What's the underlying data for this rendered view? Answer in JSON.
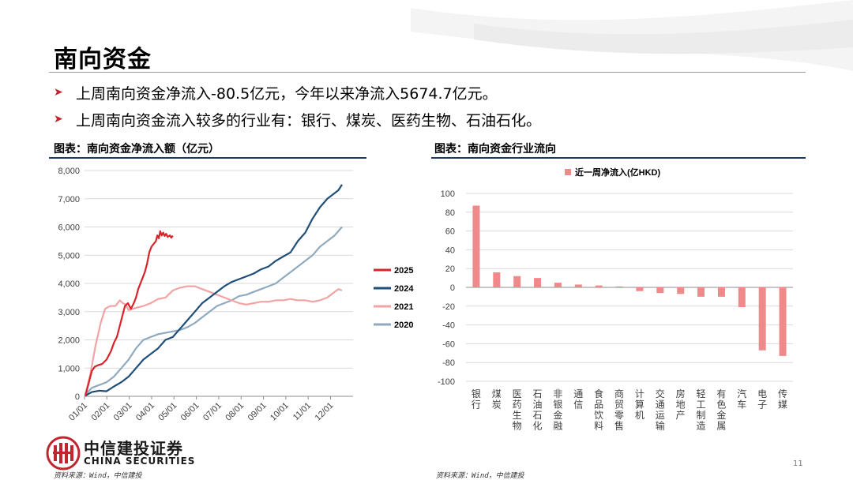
{
  "slide": {
    "title": "南向资金",
    "bullets": [
      "上周南向资金净流入-80.5亿元，今年以来净流入5674.7亿元。",
      "上周南向资金流入较多的行业有：银行、煤炭、医药生物、石油石化。"
    ],
    "page_number": "11"
  },
  "footer": {
    "logo_cn": "中信建投证券",
    "logo_en": "CHINA SECURITIES",
    "source_left": "资料来源：Wind，中信建投",
    "source_right": "资料来源：Wind，中信建投"
  },
  "colors": {
    "brand_red": "#c0262d",
    "s2025": "#d9232b",
    "s2024": "#1f4e79",
    "s2021": "#f2a3a3",
    "s2020": "#8faabf",
    "bar": "#f08a8a"
  },
  "chart_data": [
    {
      "type": "line",
      "title": "图表：南向资金净流入额（亿元）",
      "x_ticks": [
        "01/01",
        "02/01",
        "03/01",
        "04/01",
        "05/01",
        "06/01",
        "07/01",
        "08/01",
        "09/01",
        "10/01",
        "11/01",
        "12/01"
      ],
      "ylim": [
        0,
        8000
      ],
      "y_ticks": [
        "0",
        "1,000",
        "2,000",
        "3,000",
        "4,000",
        "5,000",
        "6,000",
        "7,000",
        "8,000"
      ],
      "grid": true,
      "legend_position": "right",
      "series": [
        {
          "name": "2025",
          "color": "#d9232b",
          "points": [
            [
              1,
              10
            ],
            [
              3,
              200
            ],
            [
              7,
              600
            ],
            [
              10,
              900
            ],
            [
              14,
              1050
            ],
            [
              18,
              1100
            ],
            [
              24,
              1150
            ],
            [
              30,
              1300
            ],
            [
              36,
              1600
            ],
            [
              40,
              1900
            ],
            [
              44,
              2100
            ],
            [
              48,
              2500
            ],
            [
              52,
              2900
            ],
            [
              55,
              3200
            ],
            [
              59,
              3300
            ],
            [
              63,
              3100
            ],
            [
              67,
              3300
            ],
            [
              70,
              3500
            ],
            [
              73,
              3800
            ],
            [
              76,
              4000
            ],
            [
              79,
              4200
            ],
            [
              82,
              4400
            ],
            [
              85,
              4700
            ],
            [
              88,
              5100
            ],
            [
              91,
              5300
            ],
            [
              94,
              5400
            ],
            [
              97,
              5500
            ],
            [
              99,
              5700
            ],
            [
              101,
              5600
            ],
            [
              103,
              5850
            ],
            [
              105,
              5700
            ],
            [
              107,
              5800
            ],
            [
              109,
              5680
            ],
            [
              111,
              5760
            ],
            [
              113,
              5650
            ],
            [
              116,
              5700
            ],
            [
              118,
              5620
            ],
            [
              120,
              5690
            ]
          ]
        },
        {
          "name": "2024",
          "color": "#1f4e79",
          "points": [
            [
              1,
              20
            ],
            [
              10,
              150
            ],
            [
              20,
              200
            ],
            [
              30,
              180
            ],
            [
              40,
              350
            ],
            [
              50,
              500
            ],
            [
              60,
              700
            ],
            [
              70,
              1000
            ],
            [
              80,
              1300
            ],
            [
              90,
              1500
            ],
            [
              100,
              1700
            ],
            [
              110,
              2000
            ],
            [
              120,
              2100
            ],
            [
              130,
              2400
            ],
            [
              140,
              2700
            ],
            [
              150,
              3000
            ],
            [
              160,
              3300
            ],
            [
              170,
              3500
            ],
            [
              180,
              3700
            ],
            [
              190,
              3900
            ],
            [
              200,
              4050
            ],
            [
              210,
              4150
            ],
            [
              220,
              4250
            ],
            [
              230,
              4350
            ],
            [
              240,
              4500
            ],
            [
              250,
              4600
            ],
            [
              260,
              4800
            ],
            [
              270,
              4950
            ],
            [
              280,
              5100
            ],
            [
              290,
              5500
            ],
            [
              300,
              5800
            ],
            [
              310,
              6300
            ],
            [
              320,
              6700
            ],
            [
              330,
              7000
            ],
            [
              340,
              7200
            ],
            [
              345,
              7300
            ],
            [
              350,
              7500
            ]
          ]
        },
        {
          "name": "2021",
          "color": "#f2a3a3",
          "points": [
            [
              1,
              50
            ],
            [
              8,
              800
            ],
            [
              15,
              1800
            ],
            [
              22,
              2600
            ],
            [
              28,
              3100
            ],
            [
              35,
              3200
            ],
            [
              42,
              3200
            ],
            [
              48,
              3400
            ],
            [
              52,
              3300
            ],
            [
              56,
              3250
            ],
            [
              60,
              3050
            ],
            [
              66,
              3100
            ],
            [
              72,
              3150
            ],
            [
              80,
              3200
            ],
            [
              90,
              3300
            ],
            [
              100,
              3450
            ],
            [
              110,
              3500
            ],
            [
              120,
              3750
            ],
            [
              130,
              3850
            ],
            [
              140,
              3900
            ],
            [
              150,
              3900
            ],
            [
              160,
              3800
            ],
            [
              170,
              3700
            ],
            [
              180,
              3600
            ],
            [
              190,
              3500
            ],
            [
              200,
              3400
            ],
            [
              210,
              3300
            ],
            [
              220,
              3250
            ],
            [
              230,
              3300
            ],
            [
              240,
              3350
            ],
            [
              250,
              3350
            ],
            [
              260,
              3400
            ],
            [
              270,
              3400
            ],
            [
              280,
              3450
            ],
            [
              290,
              3400
            ],
            [
              300,
              3400
            ],
            [
              310,
              3350
            ],
            [
              320,
              3400
            ],
            [
              330,
              3500
            ],
            [
              340,
              3700
            ],
            [
              345,
              3800
            ],
            [
              350,
              3750
            ]
          ]
        },
        {
          "name": "2020",
          "color": "#8faabf",
          "points": [
            [
              1,
              50
            ],
            [
              10,
              300
            ],
            [
              20,
              400
            ],
            [
              30,
              500
            ],
            [
              40,
              700
            ],
            [
              50,
              1000
            ],
            [
              60,
              1300
            ],
            [
              70,
              1700
            ],
            [
              80,
              2000
            ],
            [
              90,
              2100
            ],
            [
              100,
              2200
            ],
            [
              110,
              2250
            ],
            [
              120,
              2300
            ],
            [
              130,
              2350
            ],
            [
              140,
              2450
            ],
            [
              150,
              2600
            ],
            [
              160,
              2800
            ],
            [
              170,
              3000
            ],
            [
              180,
              3200
            ],
            [
              190,
              3300
            ],
            [
              200,
              3400
            ],
            [
              210,
              3550
            ],
            [
              220,
              3600
            ],
            [
              230,
              3700
            ],
            [
              240,
              3800
            ],
            [
              250,
              3900
            ],
            [
              260,
              4000
            ],
            [
              270,
              4200
            ],
            [
              280,
              4400
            ],
            [
              290,
              4600
            ],
            [
              300,
              4800
            ],
            [
              310,
              5000
            ],
            [
              320,
              5300
            ],
            [
              330,
              5500
            ],
            [
              340,
              5700
            ],
            [
              350,
              6000
            ]
          ]
        }
      ]
    },
    {
      "type": "bar",
      "title": "图表：南向资金行业流向",
      "legend": "近一周净流入(亿HKD)",
      "legend_position": "top",
      "ylim": [
        -100,
        100
      ],
      "y_ticks": [
        "100",
        "80",
        "60",
        "40",
        "20",
        "0",
        "-20",
        "-40",
        "-60",
        "-80",
        "-100"
      ],
      "grid": true,
      "categories": [
        "银行",
        "煤炭",
        "医药生物",
        "石油石化",
        "非银金融",
        "通信",
        "食品饮料",
        "商贸零售",
        "计算机",
        "交通运输",
        "房地产",
        "轻工制造",
        "有色金属",
        "汽车",
        "电子",
        "传媒"
      ],
      "values": [
        87,
        16,
        12,
        10,
        5,
        3,
        2,
        1,
        -4,
        -6,
        -7,
        -10,
        -10,
        -21,
        -67,
        -73
      ]
    }
  ]
}
